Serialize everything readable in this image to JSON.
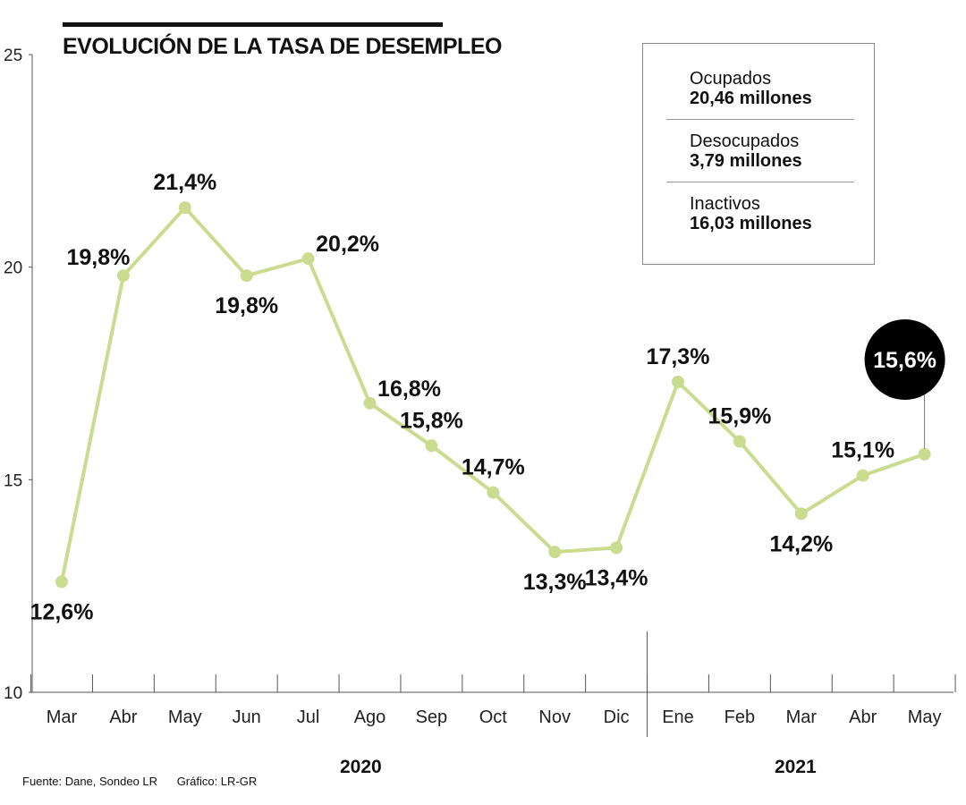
{
  "title": "EVOLUCIÓN DE LA TASA DE DESEMPLEO",
  "legend": [
    {
      "label": "Ocupados",
      "value": "20,46 millones"
    },
    {
      "label": "Desocupados",
      "value": "3,79 millones"
    },
    {
      "label": "Inactivos",
      "value": "16,03 millones"
    }
  ],
  "source": "Fuente: Dane, Sondeo LR",
  "credit": "Gráfico: LR-GR",
  "years": {
    "y2020": "2020",
    "y2021": "2021"
  },
  "colors": {
    "line": "#c9dc8f",
    "marker": "#c9dc8f",
    "highlight": "#000000",
    "axis": "#555555"
  },
  "chart_data": {
    "type": "line",
    "title": "EVOLUCIÓN DE LA TASA DE DESEMPLEO",
    "categories": [
      "Mar",
      "Abr",
      "May",
      "Jun",
      "Jul",
      "Ago",
      "Sep",
      "Oct",
      "Nov",
      "Dic",
      "Ene",
      "Feb",
      "Mar",
      "Abr",
      "May"
    ],
    "values": [
      12.6,
      19.8,
      21.4,
      19.8,
      20.2,
      16.8,
      15.8,
      14.7,
      13.3,
      13.4,
      17.3,
      15.9,
      14.2,
      15.1,
      15.6
    ],
    "labels": [
      "12,6%",
      "19,8%",
      "21,4%",
      "19,8%",
      "20,2%",
      "16,8%",
      "15,8%",
      "14,7%",
      "13,3%",
      "13,4%",
      "17,3%",
      "15,9%",
      "14,2%",
      "15,1%",
      "15,6%"
    ],
    "label_position": [
      "below",
      "left",
      "above",
      "below",
      "right",
      "right",
      "above",
      "above",
      "below",
      "below",
      "above",
      "above",
      "below",
      "above",
      "highlight"
    ],
    "yticks": [
      "10",
      "15",
      "20",
      "25"
    ],
    "ylim": [
      10,
      25
    ],
    "highlight_index": 14,
    "xlabel": "",
    "ylabel": ""
  }
}
